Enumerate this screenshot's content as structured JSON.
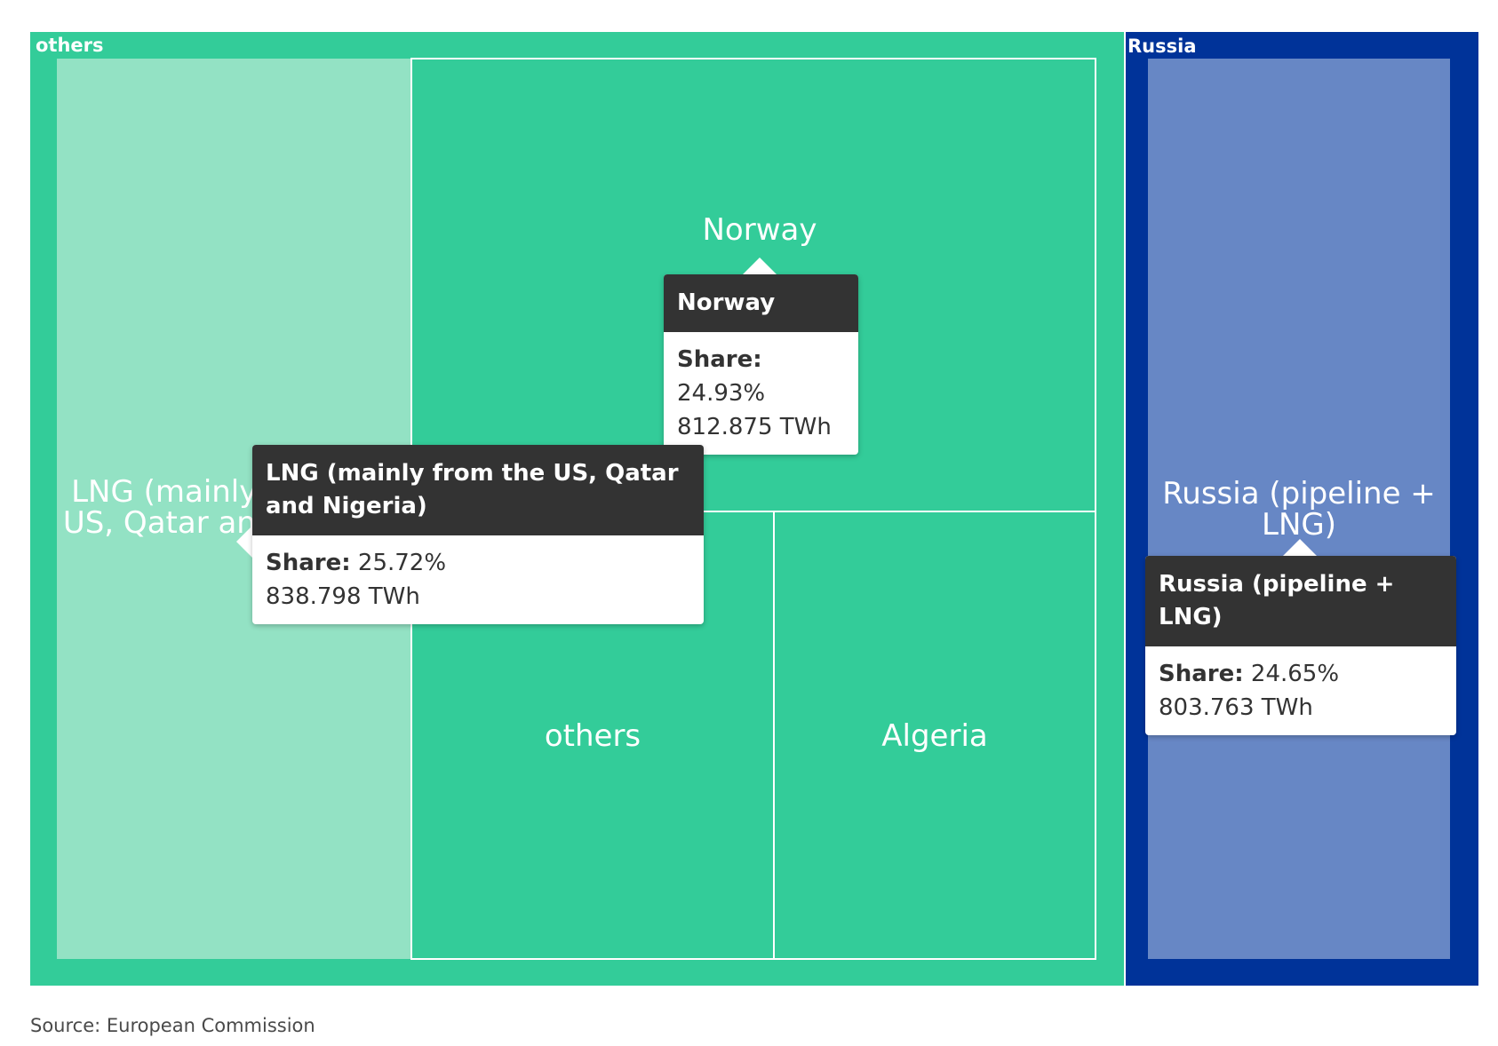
{
  "chart_data": {
    "type": "treemap",
    "groups": [
      {
        "name": "others",
        "color": "#33cc99",
        "children": [
          {
            "name": "LNG (mainly from the US, Qatar and Nigeria)",
            "label": "LNG (mainly from the US, Qatar and Nigeria)",
            "share": 25.72,
            "value": 838.798,
            "color": "#93e2c4"
          },
          {
            "name": "Norway",
            "label": "Norway",
            "share": 24.93,
            "value": 812.875,
            "color": "#33cc99"
          },
          {
            "name": "others",
            "label": "others",
            "color": "#33cc99"
          },
          {
            "name": "Algeria",
            "label": "Algeria",
            "color": "#33cc99"
          }
        ]
      },
      {
        "name": "Russia",
        "color": "#003399",
        "children": [
          {
            "name": "Russia (pipeline + LNG)",
            "label": "Russia (pipeline + LNG)",
            "share": 24.65,
            "value": 803.763,
            "color": "#6787c5"
          }
        ]
      }
    ],
    "unit": "TWh"
  },
  "tooltips": {
    "share_label": "Share:",
    "norway": {
      "title": "Norway",
      "share": "24.93%",
      "value": "812.875 TWh"
    },
    "lng": {
      "title": "LNG (mainly from the US, Qatar and Nigeria)",
      "share": "25.72%",
      "value": "838.798 TWh"
    },
    "russia": {
      "title": "Russia (pipeline + LNG)",
      "share": "24.65%",
      "value": "803.763 TWh"
    }
  },
  "source": "Source: European Commission"
}
